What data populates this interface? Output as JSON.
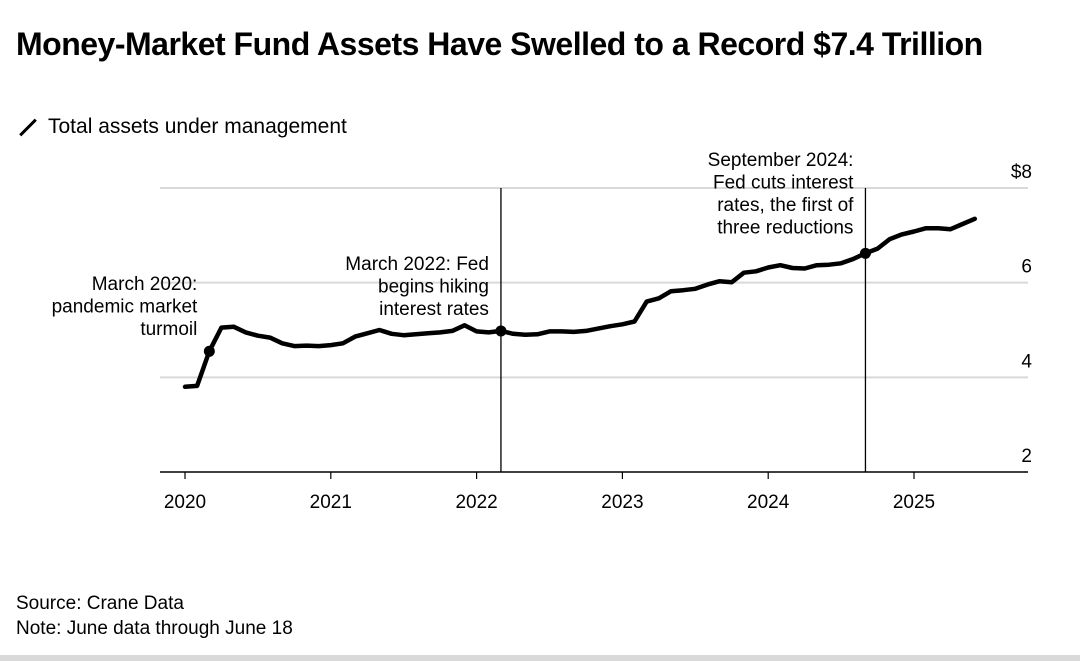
{
  "title": "Money-Market Fund Assets Have Swelled to a Record $7.4 Trillion",
  "legend": {
    "icon": "line-icon",
    "label": "Total assets under management"
  },
  "footer": {
    "source": "Source: Crane Data",
    "note": "Note: June data through June 18"
  },
  "colors": {
    "line": "#000000",
    "grid": "#d9d9d9",
    "axis": "#000000"
  },
  "chart_data": {
    "type": "line",
    "title": "Money-Market Fund Assets Have Swelled to a Record $7.4 Trillion",
    "ylabel": "",
    "xlabel": "",
    "ylim": [
      2,
      8
    ],
    "xlim": [
      2019.95,
      2025.75
    ],
    "y_ticks": [
      2,
      4,
      6,
      8
    ],
    "y_tick_labels": [
      "2",
      "4",
      "6",
      "$8"
    ],
    "x_ticks": [
      2020,
      2021,
      2022,
      2023,
      2024,
      2025
    ],
    "x_tick_labels": [
      "2020",
      "2021",
      "2022",
      "2023",
      "2024",
      "2025"
    ],
    "grid": "horizontal",
    "y_axis_side": "right",
    "series": [
      {
        "name": "Total assets under management",
        "x": [
          2020.0,
          2020.083,
          2020.167,
          2020.25,
          2020.333,
          2020.417,
          2020.5,
          2020.583,
          2020.667,
          2020.75,
          2020.833,
          2020.917,
          2021.0,
          2021.083,
          2021.167,
          2021.25,
          2021.333,
          2021.417,
          2021.5,
          2021.583,
          2021.667,
          2021.75,
          2021.833,
          2021.917,
          2022.0,
          2022.083,
          2022.167,
          2022.25,
          2022.333,
          2022.417,
          2022.5,
          2022.583,
          2022.667,
          2022.75,
          2022.833,
          2022.917,
          2023.0,
          2023.083,
          2023.167,
          2023.25,
          2023.333,
          2023.417,
          2023.5,
          2023.583,
          2023.667,
          2023.75,
          2023.833,
          2023.917,
          2024.0,
          2024.083,
          2024.167,
          2024.25,
          2024.333,
          2024.417,
          2024.5,
          2024.583,
          2024.667,
          2024.75,
          2024.833,
          2024.917,
          2025.0,
          2025.083,
          2025.167,
          2025.25,
          2025.333,
          2025.417
        ],
        "values": [
          3.8,
          3.82,
          4.55,
          5.05,
          5.07,
          4.95,
          4.88,
          4.84,
          4.72,
          4.66,
          4.67,
          4.66,
          4.68,
          4.72,
          4.86,
          4.93,
          5.0,
          4.92,
          4.89,
          4.91,
          4.93,
          4.95,
          4.98,
          5.1,
          4.97,
          4.95,
          4.98,
          4.92,
          4.9,
          4.91,
          4.97,
          4.97,
          4.96,
          4.98,
          5.03,
          5.08,
          5.12,
          5.18,
          5.6,
          5.67,
          5.82,
          5.84,
          5.87,
          5.96,
          6.03,
          6.01,
          6.21,
          6.24,
          6.32,
          6.37,
          6.31,
          6.3,
          6.37,
          6.38,
          6.41,
          6.5,
          6.62,
          6.72,
          6.92,
          7.02,
          7.08,
          7.15,
          7.15,
          7.13,
          7.24,
          7.35
        ]
      }
    ],
    "markers": [
      {
        "x": 2020.167,
        "y": 4.55
      },
      {
        "x": 2022.167,
        "y": 4.98
      },
      {
        "x": 2024.667,
        "y": 6.62
      }
    ],
    "annotations": [
      {
        "x": 2020.167,
        "lines": [
          "March 2020:",
          "pandemic market",
          "turmoil"
        ]
      },
      {
        "x": 2022.167,
        "lines": [
          "March 2022: Fed",
          "begins hiking",
          "interest rates"
        ]
      },
      {
        "x": 2024.667,
        "lines": [
          "September 2024:",
          "Fed cuts interest",
          "rates, the first of",
          "three reductions"
        ]
      }
    ]
  }
}
